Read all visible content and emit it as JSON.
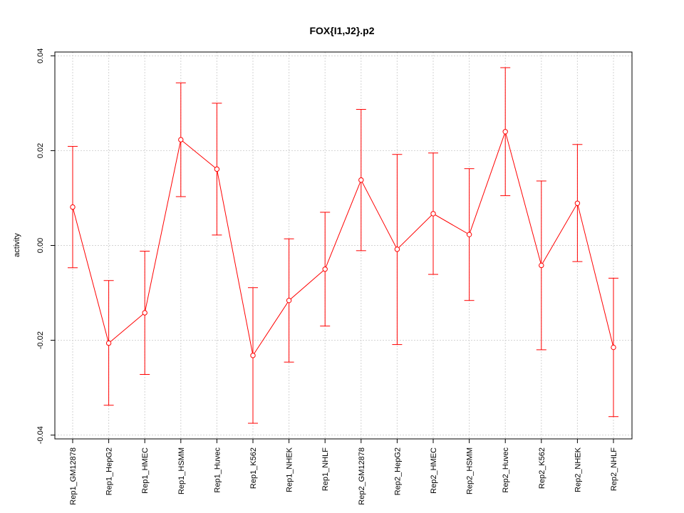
{
  "chart_data": {
    "type": "line",
    "title": "FOX{I1,J2}.p2",
    "xlabel": "",
    "ylabel": "activity",
    "categories": [
      "Rep1_GM12878",
      "Rep1_HepG2",
      "Rep1_HMEC",
      "Rep1_HSMM",
      "Rep1_Huvec",
      "Rep1_K562",
      "Rep1_NHEK",
      "Rep1_NHLF",
      "Rep2_GM12878",
      "Rep2_HepG2",
      "Rep2_HMEC",
      "Rep2_HSMM",
      "Rep2_Huvec",
      "Rep2_K562",
      "Rep2_NHEK",
      "Rep2_NHLF"
    ],
    "series": [
      {
        "values": [
          0.0081,
          -0.0206,
          -0.0142,
          0.0223,
          0.0161,
          -0.0232,
          -0.0116,
          -0.005,
          0.0138,
          -0.0008,
          0.0067,
          0.0023,
          0.024,
          -0.0042,
          0.0089,
          -0.0215
        ],
        "lower": [
          -0.0047,
          -0.0337,
          -0.0272,
          0.0103,
          0.0022,
          -0.0375,
          -0.0246,
          -0.017,
          -0.0011,
          -0.0209,
          -0.0061,
          -0.0116,
          0.0105,
          -0.022,
          -0.0034,
          -0.0361
        ],
        "upper": [
          0.0209,
          -0.0074,
          -0.0012,
          0.0343,
          0.03,
          -0.0089,
          0.0014,
          0.007,
          0.0287,
          0.0192,
          0.0195,
          0.0162,
          0.0375,
          0.0136,
          0.0213,
          -0.0069
        ]
      }
    ],
    "yticks": [
      "-0.04",
      "-0.02",
      "0.00",
      "0.02",
      "0.04"
    ],
    "ytick_values": [
      -0.04,
      -0.02,
      0.0,
      0.02,
      0.04
    ],
    "ylim": [
      -0.0408,
      0.0408
    ],
    "grid": true,
    "colors": {
      "series": "#ff0000",
      "grid": "#d3d3d3",
      "axis": "#000000"
    }
  }
}
